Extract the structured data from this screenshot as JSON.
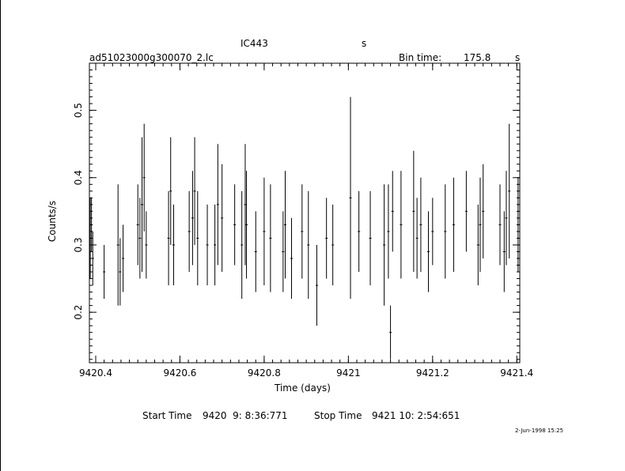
{
  "header": {
    "object": "IC443",
    "object_unit": "s",
    "filename": "ad51023000g300070_2.lc",
    "bin_label": "Bin time:",
    "bin_value": "175.8",
    "bin_unit": "s"
  },
  "footer": {
    "start_label": "Start Time",
    "start_value": "9420  9: 8:36:771",
    "stop_label": "Stop Time",
    "stop_value": "9421 10: 2:54:651",
    "date_stamp": "2-Jun-1998 15:25"
  },
  "chart_data": {
    "type": "scatter",
    "title": "IC443",
    "xlabel": "Time (days)",
    "ylabel": "Counts/s",
    "xlim": [
      9420.385,
      9421.407
    ],
    "ylim": [
      0.125,
      0.57
    ],
    "x_ticks": [
      "9420.4",
      "9420.6",
      "9420.8",
      "9421",
      "9421.2",
      "9421.4"
    ],
    "x_tick_values": [
      9420.4,
      9420.6,
      9420.8,
      9421.0,
      9421.2,
      9421.4
    ],
    "y_ticks": [
      "0.2",
      "0.3",
      "0.4",
      "0.5"
    ],
    "y_tick_values": [
      0.2,
      0.3,
      0.4,
      0.5
    ],
    "marker": "error-bar",
    "series": [
      {
        "x": [
          9420.387,
          9420.39,
          9420.393,
          9420.42,
          9420.453,
          9420.458,
          9420.465,
          9420.5,
          9420.505,
          9420.51,
          9420.515,
          9420.52,
          9420.573,
          9420.578,
          9420.585,
          9420.622,
          9420.63,
          9420.635,
          9420.642,
          9420.665,
          9420.683,
          9420.69,
          9420.7,
          9420.73,
          9420.747,
          9420.755,
          9420.758,
          9420.78,
          9420.8,
          9420.815,
          9420.845,
          9420.85,
          9420.865,
          9420.89,
          9420.905,
          9420.925,
          9420.948,
          9420.963,
          9421.005,
          9421.025,
          9421.052,
          9421.085,
          9421.095,
          9421.1,
          9421.105,
          9421.125,
          9421.155,
          9421.163,
          9421.172,
          9421.19,
          9421.2,
          9421.23,
          9421.25,
          9421.28,
          9421.308,
          9421.313,
          9421.32,
          9421.36,
          9421.37,
          9421.375,
          9421.382,
          9421.403
        ],
        "y": [
          0.31,
          0.33,
          0.28,
          0.26,
          0.3,
          0.26,
          0.28,
          0.33,
          0.31,
          0.36,
          0.4,
          0.3,
          0.31,
          0.38,
          0.3,
          0.32,
          0.34,
          0.38,
          0.31,
          0.3,
          0.3,
          0.36,
          0.34,
          0.33,
          0.3,
          0.36,
          0.33,
          0.29,
          0.32,
          0.31,
          0.29,
          0.33,
          0.28,
          0.32,
          0.3,
          0.24,
          0.31,
          0.3,
          0.37,
          0.32,
          0.31,
          0.3,
          0.32,
          0.17,
          0.35,
          0.33,
          0.35,
          0.31,
          0.33,
          0.29,
          0.32,
          0.32,
          0.33,
          0.35,
          0.3,
          0.33,
          0.35,
          0.33,
          0.29,
          0.34,
          0.38,
          0.33
        ],
        "yerr": [
          0.06,
          0.04,
          0.04,
          0.04,
          0.09,
          0.05,
          0.05,
          0.06,
          0.06,
          0.1,
          0.08,
          0.05,
          0.07,
          0.08,
          0.06,
          0.06,
          0.07,
          0.08,
          0.07,
          0.06,
          0.06,
          0.09,
          0.08,
          0.06,
          0.08,
          0.09,
          0.08,
          0.06,
          0.08,
          0.08,
          0.06,
          0.08,
          0.06,
          0.07,
          0.08,
          0.06,
          0.06,
          0.06,
          0.15,
          0.06,
          0.07,
          0.09,
          0.07,
          0.04,
          0.06,
          0.08,
          0.09,
          0.06,
          0.07,
          0.06,
          0.05,
          0.07,
          0.07,
          0.06,
          0.06,
          0.07,
          0.07,
          0.06,
          0.06,
          0.07,
          0.1,
          0.07
        ]
      }
    ],
    "grid": false
  }
}
